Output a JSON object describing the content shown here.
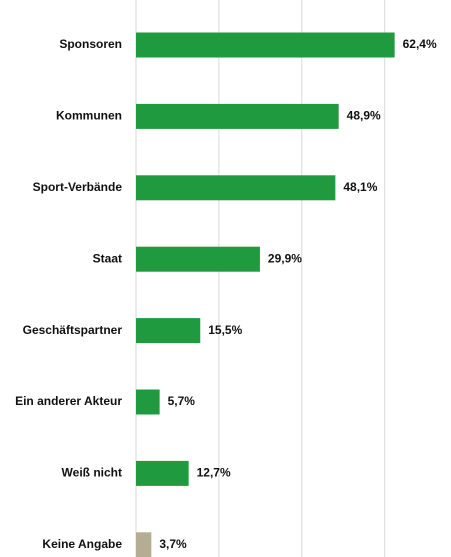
{
  "chart_data": {
    "type": "barh",
    "categories": [
      "Sponsoren",
      "Kommunen",
      "Sport-Verbände",
      "Staat",
      "Geschäftspartner",
      "Ein anderer Akteur",
      "Weiß nicht",
      "Keine Angabe"
    ],
    "values": [
      62.4,
      48.9,
      48.1,
      29.9,
      15.5,
      5.7,
      12.7,
      3.7
    ],
    "value_labels": [
      "62,4%",
      "48,9%",
      "48,1%",
      "29,9%",
      "15,5%",
      "5,7%",
      "12,7%",
      "3,7%"
    ],
    "colors": [
      "#1f9a3f",
      "#1f9a3f",
      "#1f9a3f",
      "#1f9a3f",
      "#1f9a3f",
      "#1f9a3f",
      "#1f9a3f",
      "#b4ad94"
    ],
    "xlim": [
      0,
      76
    ],
    "xticks": [
      0,
      20,
      40,
      60
    ],
    "grid": true
  }
}
